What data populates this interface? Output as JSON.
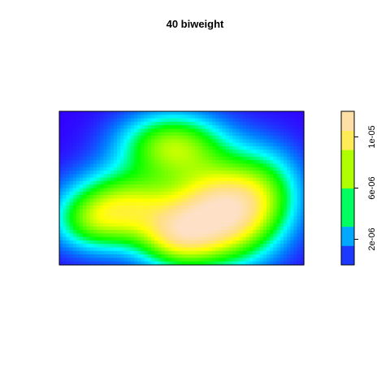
{
  "chart_data": {
    "type": "heatmap",
    "title": "40 biweight",
    "xlabel": "",
    "ylabel": "",
    "axes_shown": false,
    "colorbar": {
      "placement": "right",
      "palette": [
        "#3300ff",
        "#0080ff",
        "#00ffff",
        "#00ff00",
        "#80ff00",
        "#ffff00",
        "#ffe080",
        "#fde0c5"
      ],
      "zlim": [
        0,
        1.2e-05
      ],
      "ticks": [
        {
          "value": 2e-06,
          "label": "2e-06"
        },
        {
          "value": 6e-06,
          "label": "6e-06"
        },
        {
          "value": 1e-05,
          "label": "1e-05"
        }
      ],
      "breaks": [
        0,
        1.5e-06,
        3e-06,
        6e-06,
        9e-06,
        1.05e-05,
        1.2e-05
      ]
    },
    "density_field": {
      "grid_size": [
        72,
        44
      ],
      "bumps": [
        {
          "x": 0.27,
          "y": 0.37,
          "sx": 0.16,
          "sy": 0.17,
          "amp": 7.6e-06
        },
        {
          "x": 0.67,
          "y": 0.34,
          "sx": 0.15,
          "sy": 0.22,
          "amp": 1.12e-05
        },
        {
          "x": 0.48,
          "y": 0.17,
          "sx": 0.11,
          "sy": 0.14,
          "amp": 5.5e-06
        },
        {
          "x": 0.46,
          "y": 0.78,
          "sx": 0.15,
          "sy": 0.15,
          "amp": 6.8e-06
        },
        {
          "x": 0.12,
          "y": 0.27,
          "sx": 0.11,
          "sy": 0.13,
          "amp": 3e-06
        },
        {
          "x": 0.85,
          "y": 0.5,
          "sx": 0.11,
          "sy": 0.2,
          "amp": 3.2e-06
        }
      ]
    }
  }
}
